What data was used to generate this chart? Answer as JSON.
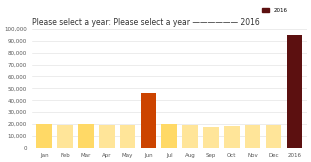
{
  "months": [
    "Jan",
    "Feb",
    "Mar",
    "Apr",
    "May",
    "Jun",
    "Jul",
    "Aug",
    "Sep",
    "Oct",
    "Nov",
    "Dec",
    "2016"
  ],
  "values": [
    20000,
    19000,
    20500,
    19500,
    19000,
    46000,
    20000,
    19500,
    18000,
    18500,
    19500,
    19000,
    95000
  ],
  "bar_colors": [
    "#FFD966",
    "#FFE599",
    "#FFD966",
    "#FFE599",
    "#FFE599",
    "#CC4400",
    "#FFD966",
    "#FFE599",
    "#FFE599",
    "#FFE599",
    "#FFE599",
    "#FFE599",
    "#5C1010"
  ],
  "ylim": [
    0,
    100000
  ],
  "yticks": [
    0,
    10000,
    20000,
    30000,
    40000,
    50000,
    60000,
    70000,
    80000,
    90000,
    100000
  ],
  "ytick_labels": [
    "0",
    "10,000",
    "20,000",
    "30,000",
    "40,000",
    "50,000",
    "60,000",
    "70,000",
    "80,000",
    "90,000",
    "100,000"
  ],
  "title": "Please select a year: Please select a year —————— 2016",
  "legend_color": "#5C1010",
  "legend_label": "2016",
  "bg_color": "#ffffff",
  "title_fontsize": 5.5,
  "tick_fontsize": 4.0
}
